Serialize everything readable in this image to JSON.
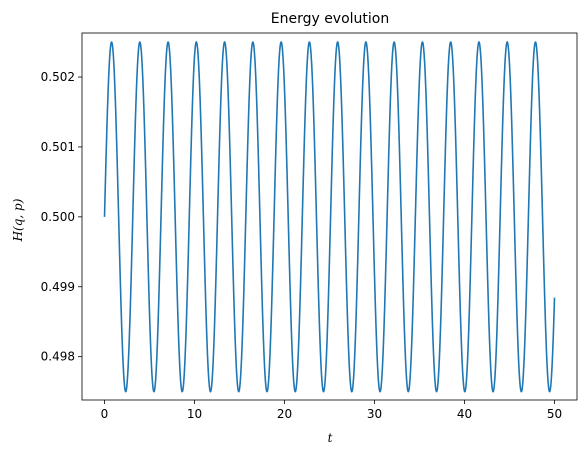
{
  "chart_data": {
    "type": "line",
    "title": "Energy evolution",
    "xlabel": "t",
    "ylabel": "H(q, p)",
    "xlim": [
      -2.5,
      52.5
    ],
    "ylim": [
      0.49738,
      0.50263
    ],
    "xticks": [
      0,
      10,
      20,
      30,
      40,
      50
    ],
    "xtick_labels": [
      "0",
      "10",
      "20",
      "30",
      "40",
      "50"
    ],
    "yticks": [
      0.498,
      0.499,
      0.5,
      0.501,
      0.502
    ],
    "ytick_labels": [
      "0.498",
      "0.499",
      "0.500",
      "0.501",
      "0.502"
    ],
    "grid": false,
    "legend": "none",
    "series": [
      {
        "color": "#1f77b4",
        "function": "0.5 + 0.0025*sin(2*pi*t/3.14)",
        "x_range": [
          0,
          50
        ],
        "mean": 0.5,
        "amplitude": 0.0025,
        "period": 3.14
      }
    ]
  }
}
